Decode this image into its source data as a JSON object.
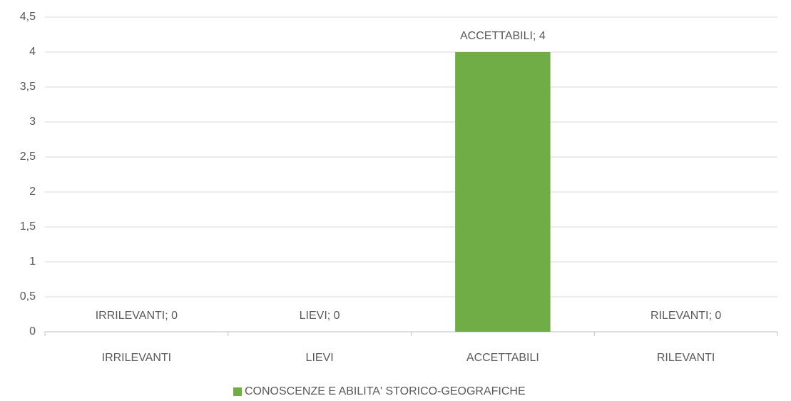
{
  "chart_data": {
    "type": "bar",
    "categories": [
      "IRRILEVANTI",
      "LIEVI",
      "ACCETTABILI",
      "RILEVANTI"
    ],
    "series": [
      {
        "name": "CONOSCENZE E ABILITA' STORICO-GEOGRAFICHE",
        "color": "#70ad47",
        "values": [
          0,
          0,
          4,
          0
        ],
        "value_labels": [
          "IRRILEVANTI; 0",
          "LIEVI; 0",
          "ACCETTABILI; 4",
          "RILEVANTI; 0"
        ]
      }
    ],
    "ylim": [
      0,
      4.5
    ],
    "yticks": [
      0,
      {
        "value": 0.5,
        "label": "0,5"
      },
      1,
      {
        "value": 1.5,
        "label": "1,5"
      },
      2,
      {
        "value": 2.5,
        "label": "2,5"
      },
      3,
      {
        "value": 3.5,
        "label": "3,5"
      },
      4,
      {
        "value": 4.5,
        "label": "4,5"
      }
    ],
    "grid": true,
    "legend": "bottom"
  }
}
